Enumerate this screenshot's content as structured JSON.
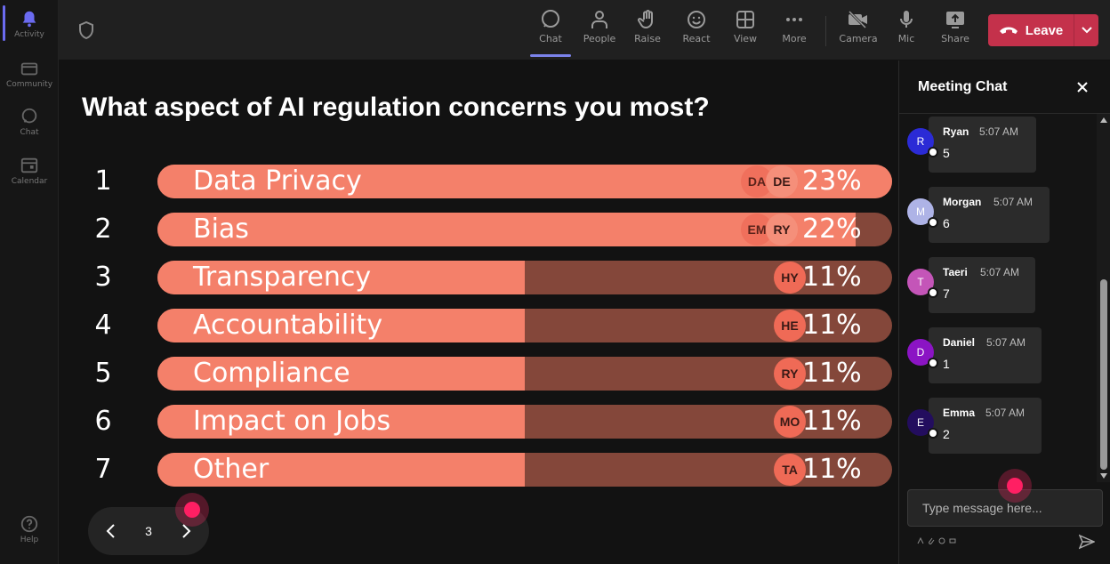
{
  "rail": {
    "items": [
      {
        "label": "Activity",
        "icon": "bell-icon"
      },
      {
        "label": "Community",
        "icon": "community-icon"
      },
      {
        "label": "Chat",
        "icon": "chat-icon"
      },
      {
        "label": "Calendar",
        "icon": "calendar-icon"
      },
      {
        "label": "Help",
        "icon": "help-icon"
      }
    ]
  },
  "toolbar": {
    "items": [
      {
        "label": "Chat",
        "icon": "chat-icon"
      },
      {
        "label": "People",
        "icon": "people-icon"
      },
      {
        "label": "Raise",
        "icon": "raise-hand-icon"
      },
      {
        "label": "React",
        "icon": "react-icon"
      },
      {
        "label": "View",
        "icon": "view-icon"
      },
      {
        "label": "More",
        "icon": "more-icon"
      },
      {
        "label": "Camera",
        "icon": "camera-off-icon"
      },
      {
        "label": "Mic",
        "icon": "mic-icon"
      },
      {
        "label": "Share",
        "icon": "share-icon"
      }
    ],
    "leave_label": "Leave",
    "leave_color": "#c4314b"
  },
  "poll": {
    "question": "What aspect of AI regulation concerns you most?",
    "options": [
      {
        "num": "1",
        "label": "Data Privacy",
        "percent": "23%",
        "fill_fraction": 1.0,
        "avatars": [
          "DA",
          "DE"
        ]
      },
      {
        "num": "2",
        "label": "Bias",
        "percent": "22%",
        "fill_fraction": 0.95,
        "avatars": [
          "EM",
          "RY"
        ]
      },
      {
        "num": "3",
        "label": "Transparency",
        "percent": "11%",
        "fill_fraction": 0.5,
        "avatars": [
          "HY"
        ]
      },
      {
        "num": "4",
        "label": "Accountability",
        "percent": "11%",
        "fill_fraction": 0.5,
        "avatars": [
          "HE"
        ]
      },
      {
        "num": "5",
        "label": "Compliance",
        "percent": "11%",
        "fill_fraction": 0.5,
        "avatars": [
          "RY"
        ]
      },
      {
        "num": "6",
        "label": "Impact on Jobs",
        "percent": "11%",
        "fill_fraction": 0.5,
        "avatars": [
          "MO"
        ]
      },
      {
        "num": "7",
        "label": "Other",
        "percent": "11%",
        "fill_fraction": 0.5,
        "avatars": [
          "TA"
        ]
      }
    ],
    "bar_color": "#f4806a",
    "track_color": "#84473a",
    "page": "3"
  },
  "chat": {
    "title": "Meeting Chat",
    "messages": [
      {
        "initial": "R",
        "name": "Ryan",
        "time": "5:07 AM",
        "text": "5",
        "avatar_color": "#2b2bd6"
      },
      {
        "initial": "M",
        "name": "Morgan",
        "time": "5:07 AM",
        "text": "6",
        "avatar_color": "#aeb3e6"
      },
      {
        "initial": "T",
        "name": "Taeri",
        "time": "5:07 AM",
        "text": "7",
        "avatar_color": "#c455b8"
      },
      {
        "initial": "D",
        "name": "Daniel",
        "time": "5:07 AM",
        "text": "1",
        "avatar_color": "#8b14c4"
      },
      {
        "initial": "E",
        "name": "Emma",
        "time": "5:07 AM",
        "text": "2",
        "avatar_color": "#230d5e"
      }
    ],
    "input_placeholder": "Type message here..."
  }
}
